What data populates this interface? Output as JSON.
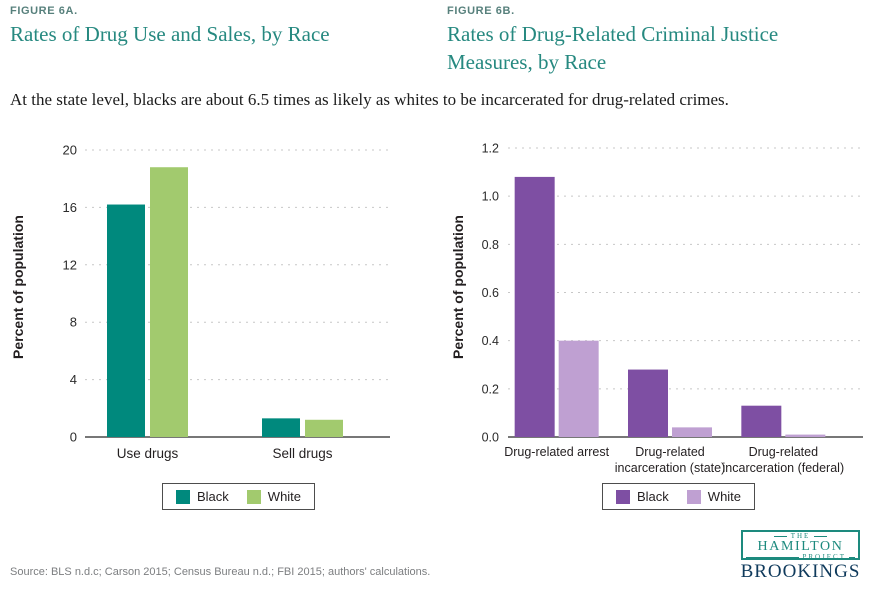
{
  "header": {
    "figures": [
      {
        "label": "FIGURE 6A.",
        "title": "Rates of Drug Use and Sales, by Race"
      },
      {
        "label": "FIGURE 6B.",
        "title": "Rates of Drug-Related Criminal Justice Measures, by Race"
      }
    ],
    "subtitle": "At the state level, blacks are about 6.5 times as likely as whites to be incarcerated for drug-related crimes."
  },
  "colors": {
    "title_teal": "#268980",
    "figure_label_gray_teal": "#57807c",
    "black_series_teal": "#00897d",
    "white_series_green": "#a2ca6e",
    "black_series_purple": "#7e4fa3",
    "white_series_light_purple": "#bfa0d2",
    "gridline_gray": "#c7c7c7",
    "baseline_gray": "#4a4a4a",
    "hamilton_teal": "#1d8a7e",
    "brookings_navy": "#0f3a5c"
  },
  "chart_data": [
    {
      "type": "bar",
      "title": "Rates of Drug Use and Sales, by Race",
      "categories": [
        "Use drugs",
        "Sell drugs"
      ],
      "series": [
        {
          "name": "Black",
          "color": "#00897d",
          "values": [
            16.2,
            1.3
          ]
        },
        {
          "name": "White",
          "color": "#a2ca6e",
          "values": [
            18.8,
            1.2
          ]
        }
      ],
      "xlabel": "",
      "ylabel": "Percent of population",
      "ylim": [
        0,
        20
      ],
      "yticks": [
        0,
        4,
        8,
        12,
        16,
        20
      ],
      "ytick_labels": [
        "0",
        "4",
        "8",
        "12",
        "16",
        "20"
      ],
      "grid": "dashed horizontal",
      "legend_position": "bottom"
    },
    {
      "type": "bar",
      "title": "Rates of Drug-Related Criminal Justice Measures, by Race",
      "categories": [
        "Drug-related arrest",
        "Drug-related\nincarceration (state)",
        "Drug-related\nincarceration (federal)"
      ],
      "series": [
        {
          "name": "Black",
          "color": "#7e4fa3",
          "values": [
            1.08,
            0.28,
            0.13
          ]
        },
        {
          "name": "White",
          "color": "#bfa0d2",
          "values": [
            0.4,
            0.04,
            0.01
          ]
        }
      ],
      "xlabel": "",
      "ylabel": "Percent of population",
      "ylim": [
        0,
        1.2
      ],
      "yticks": [
        0,
        0.2,
        0.4,
        0.6,
        0.8,
        1.0,
        1.2
      ],
      "ytick_labels": [
        "0.0",
        "0.2",
        "0.4",
        "0.6",
        "0.8",
        "1.0",
        "1.2"
      ],
      "grid": "dashed horizontal",
      "legend_position": "bottom"
    }
  ],
  "footer": {
    "source": "Source: BLS n.d.c; Carson 2015; Census Bureau n.d.; FBI 2015; authors' calculations.",
    "logo": {
      "the": "THE",
      "name": "HAMILTON",
      "project": "PROJECT",
      "brookings": "BROOKINGS"
    }
  }
}
